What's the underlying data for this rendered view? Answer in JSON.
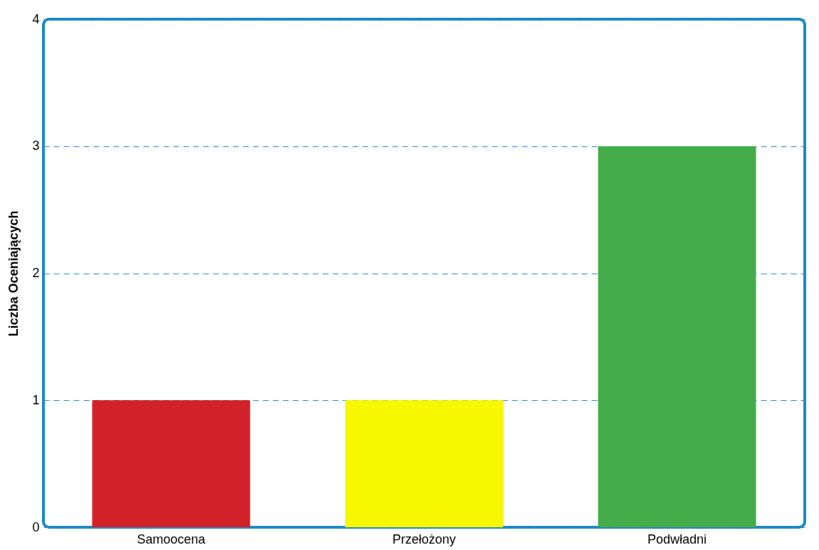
{
  "chart_data": {
    "type": "bar",
    "ylabel": "Liczba Oceniających",
    "categories": [
      "Samoocena",
      "Przełożony",
      "Podwładni"
    ],
    "values": [
      1,
      1,
      3
    ],
    "colors": [
      "#d2232a",
      "#f7f700",
      "#44ad4a"
    ],
    "ylim": [
      0,
      4
    ],
    "yticks": [
      0,
      1,
      2,
      3,
      4
    ],
    "grid": "y",
    "legend": false
  }
}
